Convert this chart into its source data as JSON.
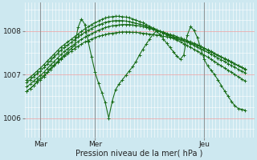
{
  "bg_color": "#cde8f0",
  "line_color": "#1a6e1a",
  "xlabel": "Pression niveau de la mer( hPa )",
  "yticks": [
    1006,
    1007,
    1008
  ],
  "xtick_labels": [
    "Mar",
    "Mer",
    "Jeu"
  ],
  "xtick_positions": [
    12,
    60,
    156
  ],
  "xlim": [
    -2,
    200
  ],
  "ylim": [
    1005.55,
    1008.65
  ],
  "vline_x": [
    12,
    60,
    156
  ],
  "series": [
    {
      "pts": [
        [
          0,
          1006.62
        ],
        [
          3,
          1006.68
        ],
        [
          6,
          1006.75
        ],
        [
          9,
          1006.82
        ],
        [
          12,
          1006.88
        ],
        [
          15,
          1006.95
        ],
        [
          18,
          1007.05
        ],
        [
          21,
          1007.12
        ],
        [
          24,
          1007.2
        ],
        [
          27,
          1007.28
        ],
        [
          30,
          1007.35
        ],
        [
          33,
          1007.42
        ],
        [
          36,
          1007.48
        ],
        [
          39,
          1007.54
        ],
        [
          42,
          1007.6
        ],
        [
          45,
          1007.65
        ],
        [
          48,
          1007.7
        ],
        [
          51,
          1007.75
        ],
        [
          54,
          1007.78
        ],
        [
          57,
          1007.82
        ],
        [
          60,
          1007.85
        ],
        [
          63,
          1007.88
        ],
        [
          66,
          1007.9
        ],
        [
          69,
          1007.92
        ],
        [
          72,
          1007.94
        ],
        [
          75,
          1007.95
        ],
        [
          78,
          1007.96
        ],
        [
          81,
          1007.97
        ],
        [
          84,
          1007.98
        ],
        [
          87,
          1007.98
        ],
        [
          90,
          1007.98
        ],
        [
          93,
          1007.97
        ],
        [
          96,
          1007.97
        ],
        [
          99,
          1007.96
        ],
        [
          102,
          1007.95
        ],
        [
          105,
          1007.94
        ],
        [
          108,
          1007.93
        ],
        [
          111,
          1007.92
        ],
        [
          114,
          1007.91
        ],
        [
          117,
          1007.9
        ],
        [
          120,
          1007.88
        ],
        [
          123,
          1007.87
        ],
        [
          126,
          1007.85
        ],
        [
          129,
          1007.84
        ],
        [
          132,
          1007.82
        ],
        [
          135,
          1007.8
        ],
        [
          138,
          1007.78
        ],
        [
          141,
          1007.75
        ],
        [
          144,
          1007.72
        ],
        [
          147,
          1007.7
        ],
        [
          150,
          1007.67
        ],
        [
          153,
          1007.64
        ],
        [
          156,
          1007.6
        ],
        [
          159,
          1007.56
        ],
        [
          162,
          1007.52
        ],
        [
          165,
          1007.48
        ],
        [
          168,
          1007.44
        ],
        [
          171,
          1007.4
        ],
        [
          174,
          1007.36
        ],
        [
          177,
          1007.32
        ],
        [
          180,
          1007.28
        ],
        [
          183,
          1007.24
        ],
        [
          186,
          1007.2
        ],
        [
          189,
          1007.16
        ],
        [
          192,
          1007.12
        ]
      ]
    },
    {
      "pts": [
        [
          0,
          1006.72
        ],
        [
          3,
          1006.78
        ],
        [
          6,
          1006.85
        ],
        [
          9,
          1006.92
        ],
        [
          12,
          1006.98
        ],
        [
          15,
          1007.05
        ],
        [
          18,
          1007.14
        ],
        [
          21,
          1007.22
        ],
        [
          24,
          1007.3
        ],
        [
          27,
          1007.38
        ],
        [
          30,
          1007.46
        ],
        [
          33,
          1007.53
        ],
        [
          36,
          1007.59
        ],
        [
          39,
          1007.65
        ],
        [
          42,
          1007.7
        ],
        [
          45,
          1007.76
        ],
        [
          48,
          1007.81
        ],
        [
          51,
          1007.86
        ],
        [
          54,
          1007.9
        ],
        [
          57,
          1007.94
        ],
        [
          60,
          1007.98
        ],
        [
          63,
          1008.02
        ],
        [
          66,
          1008.05
        ],
        [
          69,
          1008.08
        ],
        [
          72,
          1008.1
        ],
        [
          75,
          1008.12
        ],
        [
          78,
          1008.13
        ],
        [
          81,
          1008.14
        ],
        [
          84,
          1008.15
        ],
        [
          87,
          1008.15
        ],
        [
          90,
          1008.15
        ],
        [
          93,
          1008.14
        ],
        [
          96,
          1008.13
        ],
        [
          99,
          1008.12
        ],
        [
          102,
          1008.1
        ],
        [
          105,
          1008.08
        ],
        [
          108,
          1008.06
        ],
        [
          111,
          1008.04
        ],
        [
          114,
          1008.02
        ],
        [
          117,
          1008.0
        ],
        [
          120,
          1007.98
        ],
        [
          123,
          1007.95
        ],
        [
          126,
          1007.92
        ],
        [
          129,
          1007.9
        ],
        [
          132,
          1007.87
        ],
        [
          135,
          1007.84
        ],
        [
          138,
          1007.81
        ],
        [
          141,
          1007.78
        ],
        [
          144,
          1007.75
        ],
        [
          147,
          1007.72
        ],
        [
          150,
          1007.68
        ],
        [
          153,
          1007.65
        ],
        [
          156,
          1007.61
        ],
        [
          159,
          1007.57
        ],
        [
          162,
          1007.53
        ],
        [
          165,
          1007.49
        ],
        [
          168,
          1007.45
        ],
        [
          171,
          1007.41
        ],
        [
          174,
          1007.37
        ],
        [
          177,
          1007.33
        ],
        [
          180,
          1007.29
        ],
        [
          183,
          1007.25
        ],
        [
          186,
          1007.21
        ],
        [
          189,
          1007.17
        ],
        [
          192,
          1007.13
        ]
      ]
    },
    {
      "pts": [
        [
          0,
          1006.82
        ],
        [
          3,
          1006.88
        ],
        [
          6,
          1006.95
        ],
        [
          9,
          1007.02
        ],
        [
          12,
          1007.08
        ],
        [
          15,
          1007.16
        ],
        [
          18,
          1007.24
        ],
        [
          21,
          1007.32
        ],
        [
          24,
          1007.4
        ],
        [
          27,
          1007.48
        ],
        [
          30,
          1007.56
        ],
        [
          33,
          1007.62
        ],
        [
          36,
          1007.68
        ],
        [
          39,
          1007.74
        ],
        [
          42,
          1007.8
        ],
        [
          45,
          1007.86
        ],
        [
          48,
          1007.92
        ],
        [
          51,
          1007.97
        ],
        [
          54,
          1008.02
        ],
        [
          57,
          1008.06
        ],
        [
          60,
          1008.1
        ],
        [
          63,
          1008.14
        ],
        [
          66,
          1008.17
        ],
        [
          69,
          1008.2
        ],
        [
          72,
          1008.22
        ],
        [
          75,
          1008.23
        ],
        [
          78,
          1008.24
        ],
        [
          81,
          1008.24
        ],
        [
          84,
          1008.24
        ],
        [
          87,
          1008.23
        ],
        [
          90,
          1008.22
        ],
        [
          93,
          1008.2
        ],
        [
          96,
          1008.18
        ],
        [
          99,
          1008.16
        ],
        [
          102,
          1008.14
        ],
        [
          105,
          1008.11
        ],
        [
          108,
          1008.08
        ],
        [
          111,
          1008.05
        ],
        [
          114,
          1008.02
        ],
        [
          117,
          1007.99
        ],
        [
          120,
          1007.96
        ],
        [
          123,
          1007.93
        ],
        [
          126,
          1007.9
        ],
        [
          129,
          1007.87
        ],
        [
          132,
          1007.84
        ],
        [
          135,
          1007.81
        ],
        [
          138,
          1007.78
        ],
        [
          141,
          1007.75
        ],
        [
          144,
          1007.71
        ],
        [
          147,
          1007.67
        ],
        [
          150,
          1007.63
        ],
        [
          153,
          1007.59
        ],
        [
          156,
          1007.55
        ],
        [
          159,
          1007.51
        ],
        [
          162,
          1007.47
        ],
        [
          165,
          1007.43
        ],
        [
          168,
          1007.38
        ],
        [
          171,
          1007.34
        ],
        [
          174,
          1007.3
        ],
        [
          177,
          1007.25
        ],
        [
          180,
          1007.21
        ],
        [
          183,
          1007.17
        ],
        [
          186,
          1007.12
        ],
        [
          189,
          1007.08
        ],
        [
          192,
          1007.04
        ]
      ]
    },
    {
      "pts": [
        [
          0,
          1006.88
        ],
        [
          3,
          1006.94
        ],
        [
          6,
          1007.01
        ],
        [
          9,
          1007.08
        ],
        [
          12,
          1007.15
        ],
        [
          15,
          1007.23
        ],
        [
          18,
          1007.31
        ],
        [
          21,
          1007.39
        ],
        [
          24,
          1007.47
        ],
        [
          27,
          1007.55
        ],
        [
          30,
          1007.63
        ],
        [
          33,
          1007.69
        ],
        [
          36,
          1007.75
        ],
        [
          39,
          1007.81
        ],
        [
          42,
          1007.87
        ],
        [
          45,
          1007.93
        ],
        [
          48,
          1007.99
        ],
        [
          51,
          1008.05
        ],
        [
          54,
          1008.1
        ],
        [
          57,
          1008.15
        ],
        [
          60,
          1008.19
        ],
        [
          63,
          1008.23
        ],
        [
          66,
          1008.27
        ],
        [
          69,
          1008.3
        ],
        [
          72,
          1008.32
        ],
        [
          75,
          1008.33
        ],
        [
          78,
          1008.34
        ],
        [
          81,
          1008.34
        ],
        [
          84,
          1008.33
        ],
        [
          87,
          1008.32
        ],
        [
          90,
          1008.31
        ],
        [
          93,
          1008.28
        ],
        [
          96,
          1008.25
        ],
        [
          99,
          1008.22
        ],
        [
          102,
          1008.19
        ],
        [
          105,
          1008.15
        ],
        [
          108,
          1008.11
        ],
        [
          111,
          1008.07
        ],
        [
          114,
          1008.03
        ],
        [
          117,
          1007.99
        ],
        [
          120,
          1007.95
        ],
        [
          123,
          1007.91
        ],
        [
          126,
          1007.87
        ],
        [
          129,
          1007.83
        ],
        [
          132,
          1007.79
        ],
        [
          135,
          1007.75
        ],
        [
          138,
          1007.71
        ],
        [
          141,
          1007.67
        ],
        [
          144,
          1007.63
        ],
        [
          147,
          1007.58
        ],
        [
          150,
          1007.54
        ],
        [
          153,
          1007.49
        ],
        [
          156,
          1007.45
        ],
        [
          159,
          1007.4
        ],
        [
          162,
          1007.35
        ],
        [
          165,
          1007.3
        ],
        [
          168,
          1007.25
        ],
        [
          171,
          1007.2
        ],
        [
          174,
          1007.15
        ],
        [
          177,
          1007.1
        ],
        [
          180,
          1007.05
        ],
        [
          183,
          1007.0
        ],
        [
          186,
          1006.95
        ],
        [
          189,
          1006.9
        ],
        [
          192,
          1006.85
        ]
      ]
    },
    {
      "pts": [
        [
          0,
          1006.62
        ],
        [
          3,
          1006.68
        ],
        [
          6,
          1006.75
        ],
        [
          9,
          1006.85
        ],
        [
          12,
          1006.92
        ],
        [
          15,
          1006.98
        ],
        [
          18,
          1007.05
        ],
        [
          21,
          1007.15
        ],
        [
          24,
          1007.22
        ],
        [
          27,
          1007.3
        ],
        [
          30,
          1007.38
        ],
        [
          33,
          1007.45
        ],
        [
          36,
          1007.52
        ],
        [
          39,
          1007.6
        ],
        [
          42,
          1007.67
        ],
        [
          45,
          1008.08
        ],
        [
          48,
          1008.28
        ],
        [
          51,
          1008.15
        ],
        [
          54,
          1007.75
        ],
        [
          57,
          1007.4
        ],
        [
          60,
          1007.05
        ],
        [
          63,
          1006.8
        ],
        [
          66,
          1006.58
        ],
        [
          69,
          1006.35
        ],
        [
          72,
          1006.0
        ],
        [
          75,
          1006.38
        ],
        [
          78,
          1006.65
        ],
        [
          81,
          1006.78
        ],
        [
          84,
          1006.88
        ],
        [
          87,
          1006.98
        ],
        [
          90,
          1007.08
        ],
        [
          93,
          1007.18
        ],
        [
          96,
          1007.3
        ],
        [
          99,
          1007.45
        ],
        [
          102,
          1007.58
        ],
        [
          105,
          1007.7
        ],
        [
          108,
          1007.82
        ],
        [
          111,
          1007.92
        ],
        [
          114,
          1008.0
        ],
        [
          117,
          1007.92
        ],
        [
          120,
          1007.82
        ],
        [
          123,
          1007.72
        ],
        [
          126,
          1007.62
        ],
        [
          129,
          1007.52
        ],
        [
          132,
          1007.42
        ],
        [
          135,
          1007.35
        ],
        [
          138,
          1007.45
        ],
        [
          141,
          1007.9
        ],
        [
          144,
          1008.1
        ],
        [
          147,
          1008.02
        ],
        [
          150,
          1007.85
        ],
        [
          153,
          1007.6
        ],
        [
          156,
          1007.35
        ],
        [
          159,
          1007.2
        ],
        [
          162,
          1007.1
        ],
        [
          165,
          1007.0
        ],
        [
          168,
          1006.88
        ],
        [
          171,
          1006.75
        ],
        [
          174,
          1006.62
        ],
        [
          177,
          1006.5
        ],
        [
          180,
          1006.38
        ],
        [
          183,
          1006.28
        ],
        [
          186,
          1006.22
        ],
        [
          189,
          1006.2
        ],
        [
          192,
          1006.18
        ]
      ]
    }
  ]
}
